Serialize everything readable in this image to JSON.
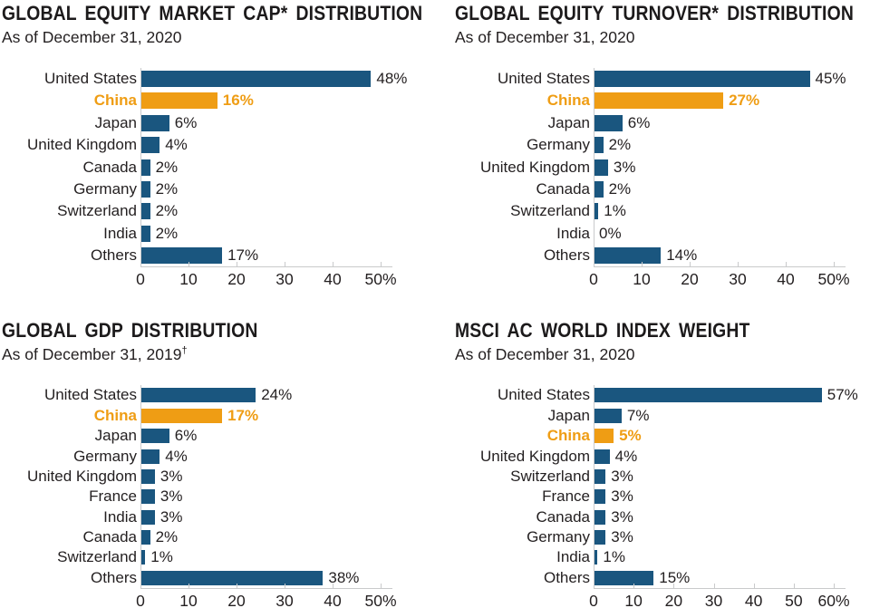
{
  "colors": {
    "bar_blue": "#1A567F",
    "bar_orange": "#EF9D14",
    "axis_gray": "#C9CACB",
    "text_dark": "#231F20"
  },
  "chart_data": [
    {
      "type": "bar",
      "orientation": "horizontal",
      "title": "GLOBAL EQUITY MARKET CAP* DISTRIBUTION",
      "subtitle": "As of December 31, 2020",
      "subtitle_sup": "",
      "xlim": [
        0,
        50
      ],
      "tick_values": [
        0,
        10,
        20,
        30,
        40,
        50
      ],
      "tick_labels": [
        "0",
        "10",
        "20",
        "30",
        "40",
        "50%"
      ],
      "categories": [
        "United States",
        "China",
        "Japan",
        "United Kingdom",
        "Canada",
        "Germany",
        "Switzerland",
        "India",
        "Others"
      ],
      "values": [
        48,
        16,
        6,
        4,
        2,
        2,
        2,
        2,
        17
      ],
      "value_labels": [
        "48%",
        "16%",
        "6%",
        "4%",
        "2%",
        "2%",
        "2%",
        "2%",
        "17%"
      ],
      "highlight_category": "China",
      "legend": "none",
      "grid": false
    },
    {
      "type": "bar",
      "orientation": "horizontal",
      "title": "GLOBAL EQUITY TURNOVER* DISTRIBUTION",
      "subtitle": "As of December 31, 2020",
      "subtitle_sup": "",
      "xlim": [
        0,
        50
      ],
      "tick_values": [
        0,
        10,
        20,
        30,
        40,
        50
      ],
      "tick_labels": [
        "0",
        "10",
        "20",
        "30",
        "40",
        "50%"
      ],
      "categories": [
        "United States",
        "China",
        "Japan",
        "Germany",
        "United Kingdom",
        "Canada",
        "Switzerland",
        "India",
        "Others"
      ],
      "values": [
        45,
        27,
        6,
        2,
        3,
        2,
        1,
        0,
        14
      ],
      "value_labels": [
        "45%",
        "27%",
        "6%",
        "2%",
        "3%",
        "2%",
        "1%",
        "0%",
        "14%"
      ],
      "highlight_category": "China",
      "legend": "none",
      "grid": false
    },
    {
      "type": "bar",
      "orientation": "horizontal",
      "title": "GLOBAL GDP DISTRIBUTION",
      "subtitle": "As of December 31, 2019",
      "subtitle_sup": "†",
      "xlim": [
        0,
        50
      ],
      "tick_values": [
        0,
        10,
        20,
        30,
        40,
        50
      ],
      "tick_labels": [
        "0",
        "10",
        "20",
        "30",
        "40",
        "50%"
      ],
      "categories": [
        "United States",
        "China",
        "Japan",
        "Germany",
        "United Kingdom",
        "France",
        "India",
        "Canada",
        "Switzerland",
        "Others"
      ],
      "values": [
        24,
        17,
        6,
        4,
        3,
        3,
        3,
        2,
        1,
        38
      ],
      "value_labels": [
        "24%",
        "17%",
        "6%",
        "4%",
        "3%",
        "3%",
        "3%",
        "2%",
        "1%",
        "38%"
      ],
      "highlight_category": "China",
      "legend": "none",
      "grid": false
    },
    {
      "type": "bar",
      "orientation": "horizontal",
      "title": "MSCI AC WORLD INDEX WEIGHT",
      "subtitle": "As of December 31, 2020",
      "subtitle_sup": "",
      "xlim": [
        0,
        60
      ],
      "tick_values": [
        0,
        10,
        20,
        30,
        40,
        50,
        60
      ],
      "tick_labels": [
        "0",
        "10",
        "20",
        "30",
        "40",
        "50",
        "60%"
      ],
      "categories": [
        "United States",
        "Japan",
        "China",
        "United Kingdom",
        "Switzerland",
        "France",
        "Canada",
        "Germany",
        "India",
        "Others"
      ],
      "values": [
        57,
        7,
        5,
        4,
        3,
        3,
        3,
        3,
        1,
        15
      ],
      "value_labels": [
        "57%",
        "7%",
        "5%",
        "4%",
        "3%",
        "3%",
        "3%",
        "3%",
        "1%",
        "15%"
      ],
      "highlight_category": "China",
      "legend": "none",
      "grid": false
    }
  ]
}
